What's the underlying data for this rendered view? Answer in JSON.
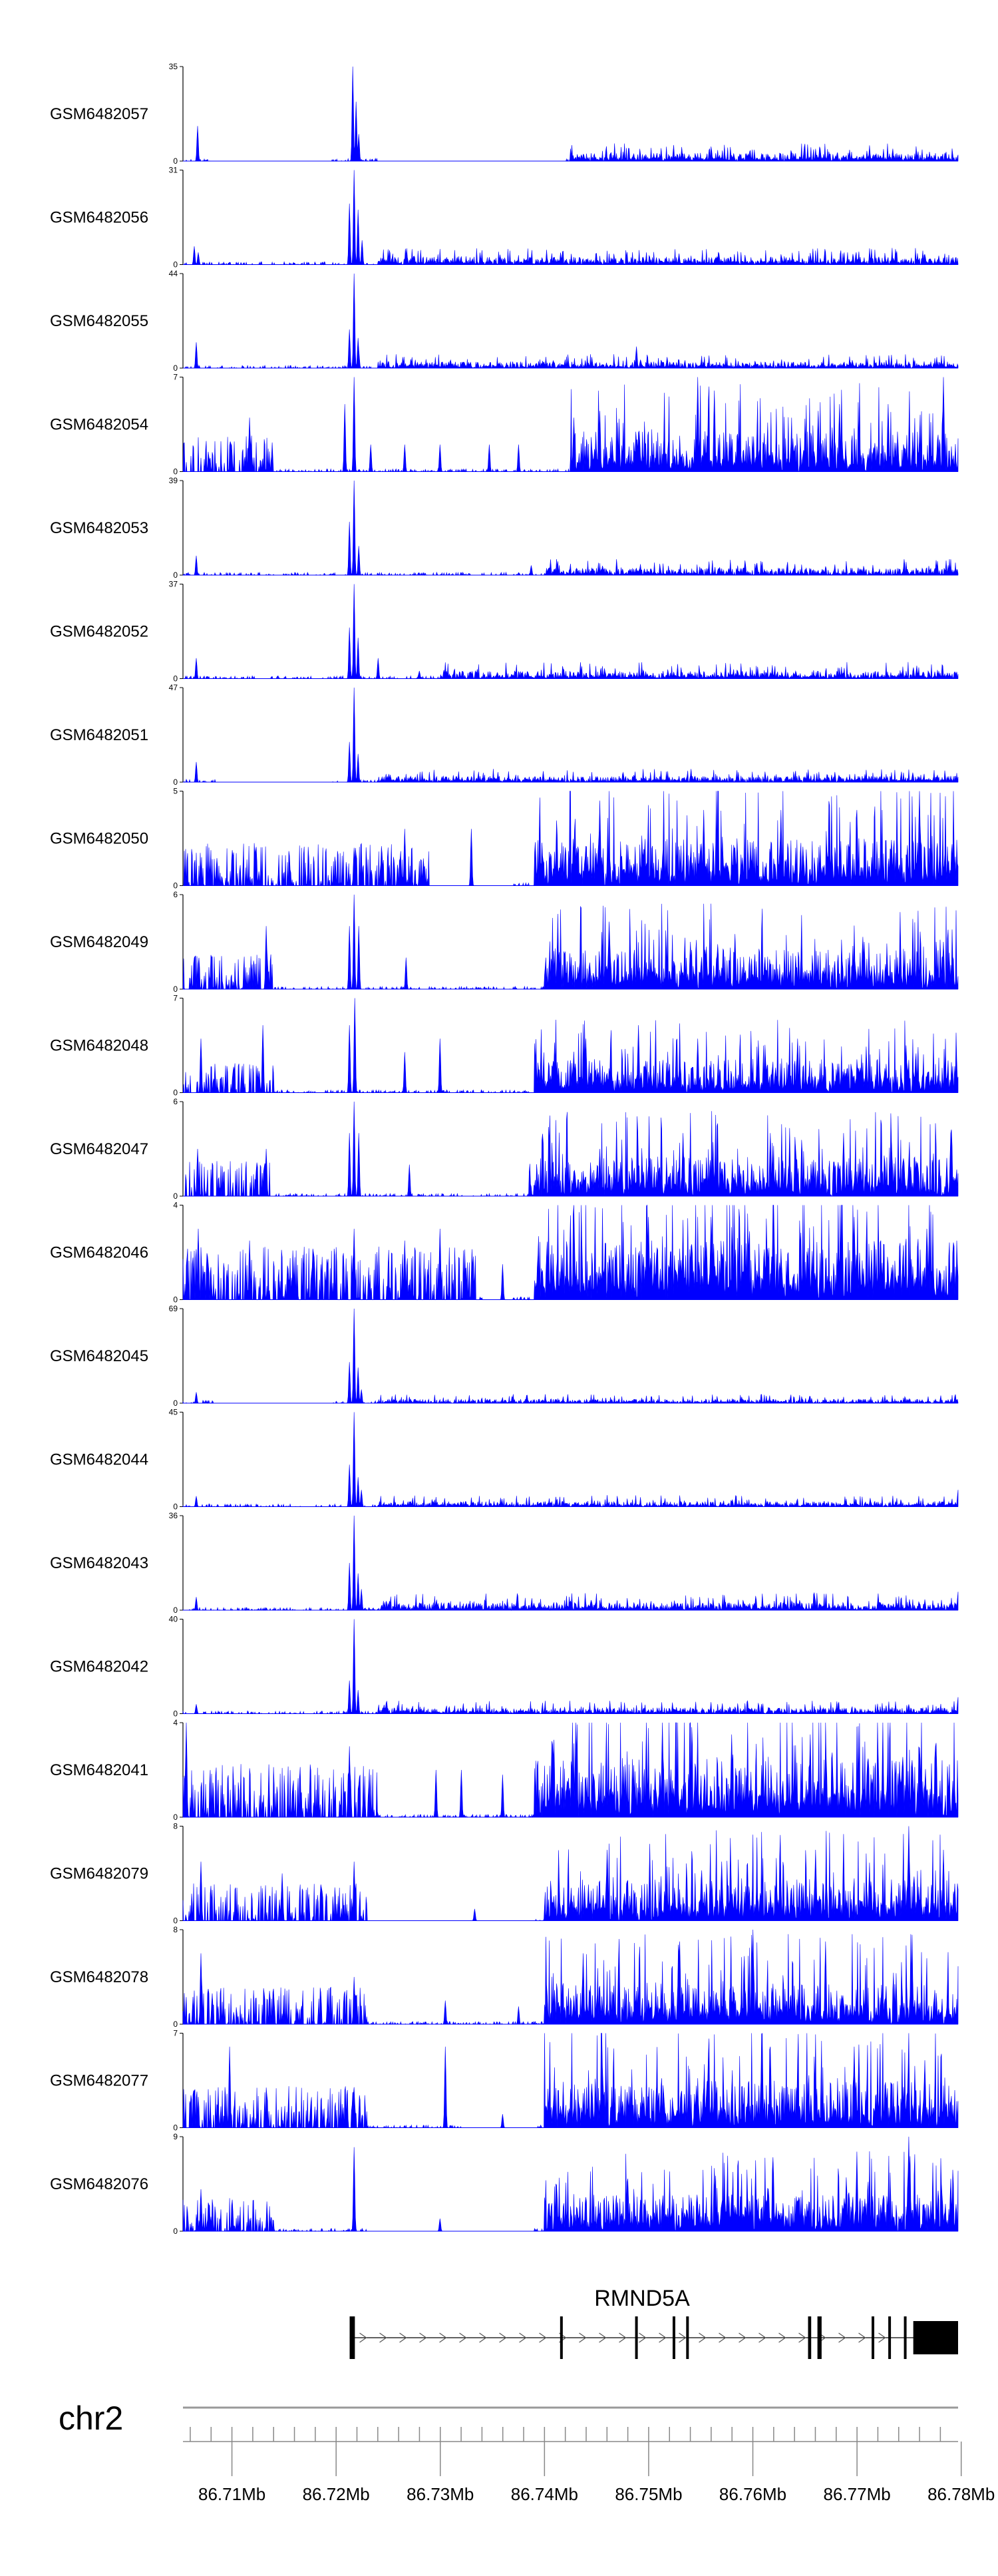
{
  "chart_data": {
    "type": "area",
    "genome_axis": {
      "chromosome": "chr2",
      "range_mb": [
        86.7053,
        86.7797
      ],
      "tick_labels": [
        "86.71Mb",
        "86.72Mb",
        "86.73Mb",
        "86.74Mb",
        "86.75Mb",
        "86.76Mb",
        "86.77Mb",
        "86.78Mb"
      ],
      "tick_values_mb": [
        86.71,
        86.72,
        86.73,
        86.74,
        86.75,
        86.76,
        86.77,
        86.78
      ]
    },
    "gene": {
      "name": "RMND5A",
      "strand": "+",
      "start_mb": 86.7213,
      "end_mb": 86.7777,
      "exons_mb": [
        [
          86.7213,
          86.7218
        ],
        [
          86.7415,
          86.7417
        ],
        [
          86.7487,
          86.7489
        ],
        [
          86.7523,
          86.7525
        ],
        [
          86.7536,
          86.7538
        ],
        [
          86.7653,
          86.7656
        ],
        [
          86.7662,
          86.7666
        ],
        [
          86.7714,
          86.7716
        ],
        [
          86.773,
          86.7732
        ],
        [
          86.7745,
          86.7747
        ],
        [
          86.7754,
          86.7797
        ]
      ]
    },
    "series": [
      {
        "name": "GSM6482057",
        "ymax": 35,
        "ylim": [
          0,
          35
        ],
        "peaks": [
          [
            86.7067,
            13
          ],
          [
            86.7216,
            35
          ],
          [
            86.7219,
            22
          ],
          [
            86.7222,
            10
          ]
        ],
        "tail_mb": [
          86.7425,
          86.7797
        ],
        "tail_level": 3,
        "gaps_mb": [
          [
            86.708,
            86.7195
          ],
          [
            86.724,
            86.742
          ]
        ],
        "dense": false
      },
      {
        "name": "GSM6482056",
        "ymax": 31,
        "ylim": [
          0,
          31
        ],
        "peaks": [
          [
            86.7064,
            6
          ],
          [
            86.7068,
            4
          ],
          [
            86.7213,
            20
          ],
          [
            86.7217,
            31
          ],
          [
            86.7221,
            18
          ],
          [
            86.7225,
            8
          ]
        ],
        "tail_mb": [
          86.724,
          86.7797
        ],
        "tail_level": 2.5,
        "gaps_mb": [],
        "dense": false
      },
      {
        "name": "GSM6482055",
        "ymax": 44,
        "ylim": [
          0,
          44
        ],
        "peaks": [
          [
            86.7066,
            12
          ],
          [
            86.7213,
            18
          ],
          [
            86.7217,
            44
          ],
          [
            86.7221,
            14
          ],
          [
            86.7222,
            8
          ],
          [
            86.7488,
            10
          ]
        ],
        "tail_mb": [
          86.724,
          86.7797
        ],
        "tail_level": 3,
        "gaps_mb": [],
        "dense": false
      },
      {
        "name": "GSM6482054",
        "ymax": 7,
        "ylim": [
          0,
          7
        ],
        "peaks": [
          [
            86.7117,
            4
          ],
          [
            86.7208,
            5
          ],
          [
            86.7217,
            7
          ],
          [
            86.7233,
            2
          ],
          [
            86.7266,
            2
          ],
          [
            86.73,
            2
          ],
          [
            86.7347,
            2
          ],
          [
            86.7375,
            2
          ],
          [
            86.7428,
            4
          ],
          [
            86.7453,
            4.5
          ],
          [
            86.7547,
            7
          ],
          [
            86.7563,
            6
          ],
          [
            86.7663,
            4.5
          ],
          [
            86.7683,
            5
          ],
          [
            86.773,
            5
          ],
          [
            86.7783,
            7
          ]
        ],
        "tail_mb": [
          86.7425,
          86.7797
        ],
        "tail_level": 3,
        "gaps_mb": [],
        "dense": true,
        "dense_before_mb": 86.714
      },
      {
        "name": "GSM6482053",
        "ymax": 39,
        "ylim": [
          0,
          39
        ],
        "peaks": [
          [
            86.7066,
            8
          ],
          [
            86.7213,
            22
          ],
          [
            86.7217,
            39
          ],
          [
            86.7222,
            12
          ],
          [
            86.7387,
            4
          ]
        ],
        "tail_mb": [
          86.74,
          86.7797
        ],
        "tail_level": 3,
        "gaps_mb": [],
        "dense": false
      },
      {
        "name": "GSM6482052",
        "ymax": 37,
        "ylim": [
          0,
          37
        ],
        "peaks": [
          [
            86.7066,
            8
          ],
          [
            86.7213,
            20
          ],
          [
            86.7217,
            37
          ],
          [
            86.7221,
            16
          ],
          [
            86.724,
            8
          ],
          [
            86.728,
            3
          ]
        ],
        "tail_mb": [
          86.73,
          86.7797
        ],
        "tail_level": 3,
        "gaps_mb": [],
        "dense": false
      },
      {
        "name": "GSM6482051",
        "ymax": 47,
        "ylim": [
          0,
          47
        ],
        "peaks": [
          [
            86.7066,
            10
          ],
          [
            86.7213,
            20
          ],
          [
            86.7217,
            47
          ],
          [
            86.7221,
            14
          ]
        ],
        "tail_mb": [
          86.724,
          86.7797
        ],
        "tail_level": 3,
        "gaps_mb": [
          [
            86.7085,
            86.7195
          ]
        ],
        "dense": false
      },
      {
        "name": "GSM6482050",
        "ymax": 5,
        "ylim": [
          0,
          5
        ],
        "peaks": [
          [
            86.7217,
            2
          ],
          [
            86.7266,
            3
          ],
          [
            86.733,
            3
          ],
          [
            86.7453,
            4.5
          ],
          [
            86.7553,
            4
          ],
          [
            86.7627,
            4
          ],
          [
            86.77,
            4
          ],
          [
            86.776,
            5
          ]
        ],
        "tail_mb": [
          86.739,
          86.7797
        ],
        "tail_level": 2.5,
        "gaps_mb": [
          [
            86.729,
            86.737
          ]
        ],
        "dense": true,
        "dense_before_mb": 86.729
      },
      {
        "name": "GSM6482049",
        "ymax": 6,
        "ylim": [
          0,
          6
        ],
        "peaks": [
          [
            86.7064,
            2
          ],
          [
            86.7133,
            4
          ],
          [
            86.7213,
            4
          ],
          [
            86.7217,
            6
          ],
          [
            86.7222,
            4
          ],
          [
            86.7267,
            2
          ],
          [
            86.7463,
            3
          ],
          [
            86.754,
            3
          ],
          [
            86.7583,
            3.5
          ],
          [
            86.7707,
            3
          ],
          [
            86.7783,
            3
          ]
        ],
        "tail_mb": [
          86.74,
          86.7797
        ],
        "tail_level": 2.5,
        "gaps_mb": [],
        "dense": true,
        "dense_before_mb": 86.714
      },
      {
        "name": "GSM6482048",
        "ymax": 7,
        "ylim": [
          0,
          7
        ],
        "peaks": [
          [
            86.707,
            4
          ],
          [
            86.713,
            5
          ],
          [
            86.7213,
            5
          ],
          [
            86.7218,
            7
          ],
          [
            86.7266,
            3
          ],
          [
            86.73,
            4
          ],
          [
            86.744,
            4
          ],
          [
            86.749,
            5
          ],
          [
            86.7547,
            4
          ],
          [
            86.7643,
            4
          ],
          [
            86.7747,
            3.5
          ]
        ],
        "tail_mb": [
          86.739,
          86.7797
        ],
        "tail_level": 2.5,
        "gaps_mb": [],
        "dense": true,
        "dense_before_mb": 86.714
      },
      {
        "name": "GSM6482047",
        "ymax": 6,
        "ylim": [
          0,
          6
        ],
        "peaks": [
          [
            86.7067,
            3
          ],
          [
            86.7133,
            3
          ],
          [
            86.7213,
            4
          ],
          [
            86.7217,
            6
          ],
          [
            86.7222,
            4
          ],
          [
            86.727,
            2
          ],
          [
            86.7453,
            3
          ],
          [
            86.7533,
            4
          ],
          [
            86.7617,
            4
          ],
          [
            86.7687,
            4
          ],
          [
            86.7733,
            3.5
          ],
          [
            86.779,
            4
          ]
        ],
        "tail_mb": [
          86.7385,
          86.7797
        ],
        "tail_level": 2.5,
        "gaps_mb": [],
        "dense": true,
        "dense_before_mb": 86.714
      },
      {
        "name": "GSM6482046",
        "ymax": 4,
        "ylim": [
          0,
          4
        ],
        "peaks": [
          [
            86.7068,
            3
          ],
          [
            86.7117,
            2.5
          ],
          [
            86.7217,
            3
          ],
          [
            86.7266,
            2.5
          ],
          [
            86.73,
            3
          ],
          [
            86.736,
            1.5
          ],
          [
            86.7428,
            4
          ],
          [
            86.75,
            3.5
          ],
          [
            86.756,
            3.5
          ],
          [
            86.762,
            4
          ],
          [
            86.7697,
            3.5
          ],
          [
            86.7767,
            3
          ]
        ],
        "tail_mb": [
          86.739,
          86.7797
        ],
        "tail_level": 2.5,
        "gaps_mb": [
          [
            86.734,
            86.737
          ]
        ],
        "dense": true,
        "dense_before_mb": 86.7335
      },
      {
        "name": "GSM6482045",
        "ymax": 69,
        "ylim": [
          0,
          69
        ],
        "peaks": [
          [
            86.7066,
            8
          ],
          [
            86.7213,
            30
          ],
          [
            86.7217,
            69
          ],
          [
            86.7221,
            26
          ],
          [
            86.7224,
            10
          ]
        ],
        "tail_mb": [
          86.724,
          86.7797
        ],
        "tail_level": 3,
        "gaps_mb": [
          [
            86.7085,
            86.7195
          ]
        ],
        "dense": false
      },
      {
        "name": "GSM6482044",
        "ymax": 45,
        "ylim": [
          0,
          45
        ],
        "peaks": [
          [
            86.7066,
            5
          ],
          [
            86.7213,
            20
          ],
          [
            86.7217,
            45
          ],
          [
            86.7221,
            14
          ],
          [
            86.7224,
            8
          ],
          [
            86.7797,
            8
          ]
        ],
        "tail_mb": [
          86.724,
          86.7797
        ],
        "tail_level": 2.5,
        "gaps_mb": [],
        "dense": false
      },
      {
        "name": "GSM6482043",
        "ymax": 36,
        "ylim": [
          0,
          36
        ],
        "peaks": [
          [
            86.7066,
            5
          ],
          [
            86.7213,
            18
          ],
          [
            86.7217,
            36
          ],
          [
            86.7221,
            14
          ],
          [
            86.7224,
            8
          ],
          [
            86.7797,
            7
          ]
        ],
        "tail_mb": [
          86.724,
          86.7797
        ],
        "tail_level": 3,
        "gaps_mb": [],
        "dense": false
      },
      {
        "name": "GSM6482042",
        "ymax": 40,
        "ylim": [
          0,
          40
        ],
        "peaks": [
          [
            86.7066,
            4
          ],
          [
            86.7213,
            14
          ],
          [
            86.7217,
            40
          ],
          [
            86.7221,
            10
          ],
          [
            86.7797,
            7
          ]
        ],
        "tail_mb": [
          86.724,
          86.7797
        ],
        "tail_level": 2.5,
        "gaps_mb": [],
        "dense": false
      },
      {
        "name": "GSM6482041",
        "ymax": 4,
        "ylim": [
          0,
          4
        ],
        "peaks": [
          [
            86.7056,
            4
          ],
          [
            86.7213,
            3
          ],
          [
            86.7296,
            2
          ],
          [
            86.732,
            2
          ],
          [
            86.736,
            1.8
          ],
          [
            86.743,
            4
          ],
          [
            86.7513,
            4
          ],
          [
            86.758,
            3.5
          ],
          [
            86.7655,
            3.5
          ],
          [
            86.7725,
            3
          ],
          [
            86.7775,
            3
          ]
        ],
        "tail_mb": [
          86.739,
          86.7797
        ],
        "tail_level": 2.5,
        "gaps_mb": [],
        "dense": true,
        "dense_before_mb": 86.724
      },
      {
        "name": "GSM6482079",
        "ymax": 8,
        "ylim": [
          0,
          8
        ],
        "peaks": [
          [
            86.707,
            5
          ],
          [
            86.7148,
            4
          ],
          [
            86.7217,
            5
          ],
          [
            86.7333,
            1
          ],
          [
            86.746,
            6
          ],
          [
            86.757,
            5
          ],
          [
            86.766,
            6
          ],
          [
            86.775,
            8
          ],
          [
            86.7783,
            6
          ]
        ],
        "tail_mb": [
          86.74,
          86.7797
        ],
        "tail_level": 3.5,
        "gaps_mb": [
          [
            86.723,
            86.739
          ]
        ],
        "dense": true,
        "dense_before_mb": 86.723
      },
      {
        "name": "GSM6482078",
        "ymax": 8,
        "ylim": [
          0,
          8
        ],
        "peaks": [
          [
            86.707,
            6
          ],
          [
            86.714,
            3
          ],
          [
            86.7217,
            4
          ],
          [
            86.7305,
            2
          ],
          [
            86.7375,
            1.5
          ],
          [
            86.7437,
            6
          ],
          [
            86.753,
            7
          ],
          [
            86.76,
            8
          ],
          [
            86.767,
            7
          ],
          [
            86.7753,
            6
          ]
        ],
        "tail_mb": [
          86.74,
          86.7797
        ],
        "tail_level": 3.5,
        "gaps_mb": [],
        "dense": true,
        "dense_before_mb": 86.723
      },
      {
        "name": "GSM6482077",
        "ymax": 7,
        "ylim": [
          0,
          7
        ],
        "peaks": [
          [
            86.7098,
            6
          ],
          [
            86.7217,
            3
          ],
          [
            86.7305,
            6
          ],
          [
            86.736,
            1
          ],
          [
            86.7455,
            7
          ],
          [
            86.7557,
            5.5
          ],
          [
            86.7617,
            6
          ],
          [
            86.7697,
            6
          ],
          [
            86.7765,
            5
          ]
        ],
        "tail_mb": [
          86.74,
          86.7797
        ],
        "tail_level": 3.5,
        "gaps_mb": [
          [
            86.732,
            86.739
          ]
        ],
        "dense": true,
        "dense_before_mb": 86.723
      },
      {
        "name": "GSM6482076",
        "ymax": 9,
        "ylim": [
          0,
          9
        ],
        "peaks": [
          [
            86.707,
            4
          ],
          [
            86.71,
            3
          ],
          [
            86.7217,
            8
          ],
          [
            86.73,
            1.2
          ],
          [
            86.748,
            5
          ],
          [
            86.7563,
            6
          ],
          [
            86.77,
            7
          ],
          [
            86.775,
            9
          ],
          [
            86.779,
            5
          ]
        ],
        "tail_mb": [
          86.74,
          86.7797
        ],
        "tail_level": 3.5,
        "gaps_mb": [
          [
            86.723,
            86.739
          ]
        ],
        "dense": true,
        "dense_before_mb": 86.714
      }
    ],
    "colors": {
      "fill": "#0000ff",
      "axis": "#000000",
      "chrom_line": "#999999",
      "gene": "#000000"
    }
  }
}
